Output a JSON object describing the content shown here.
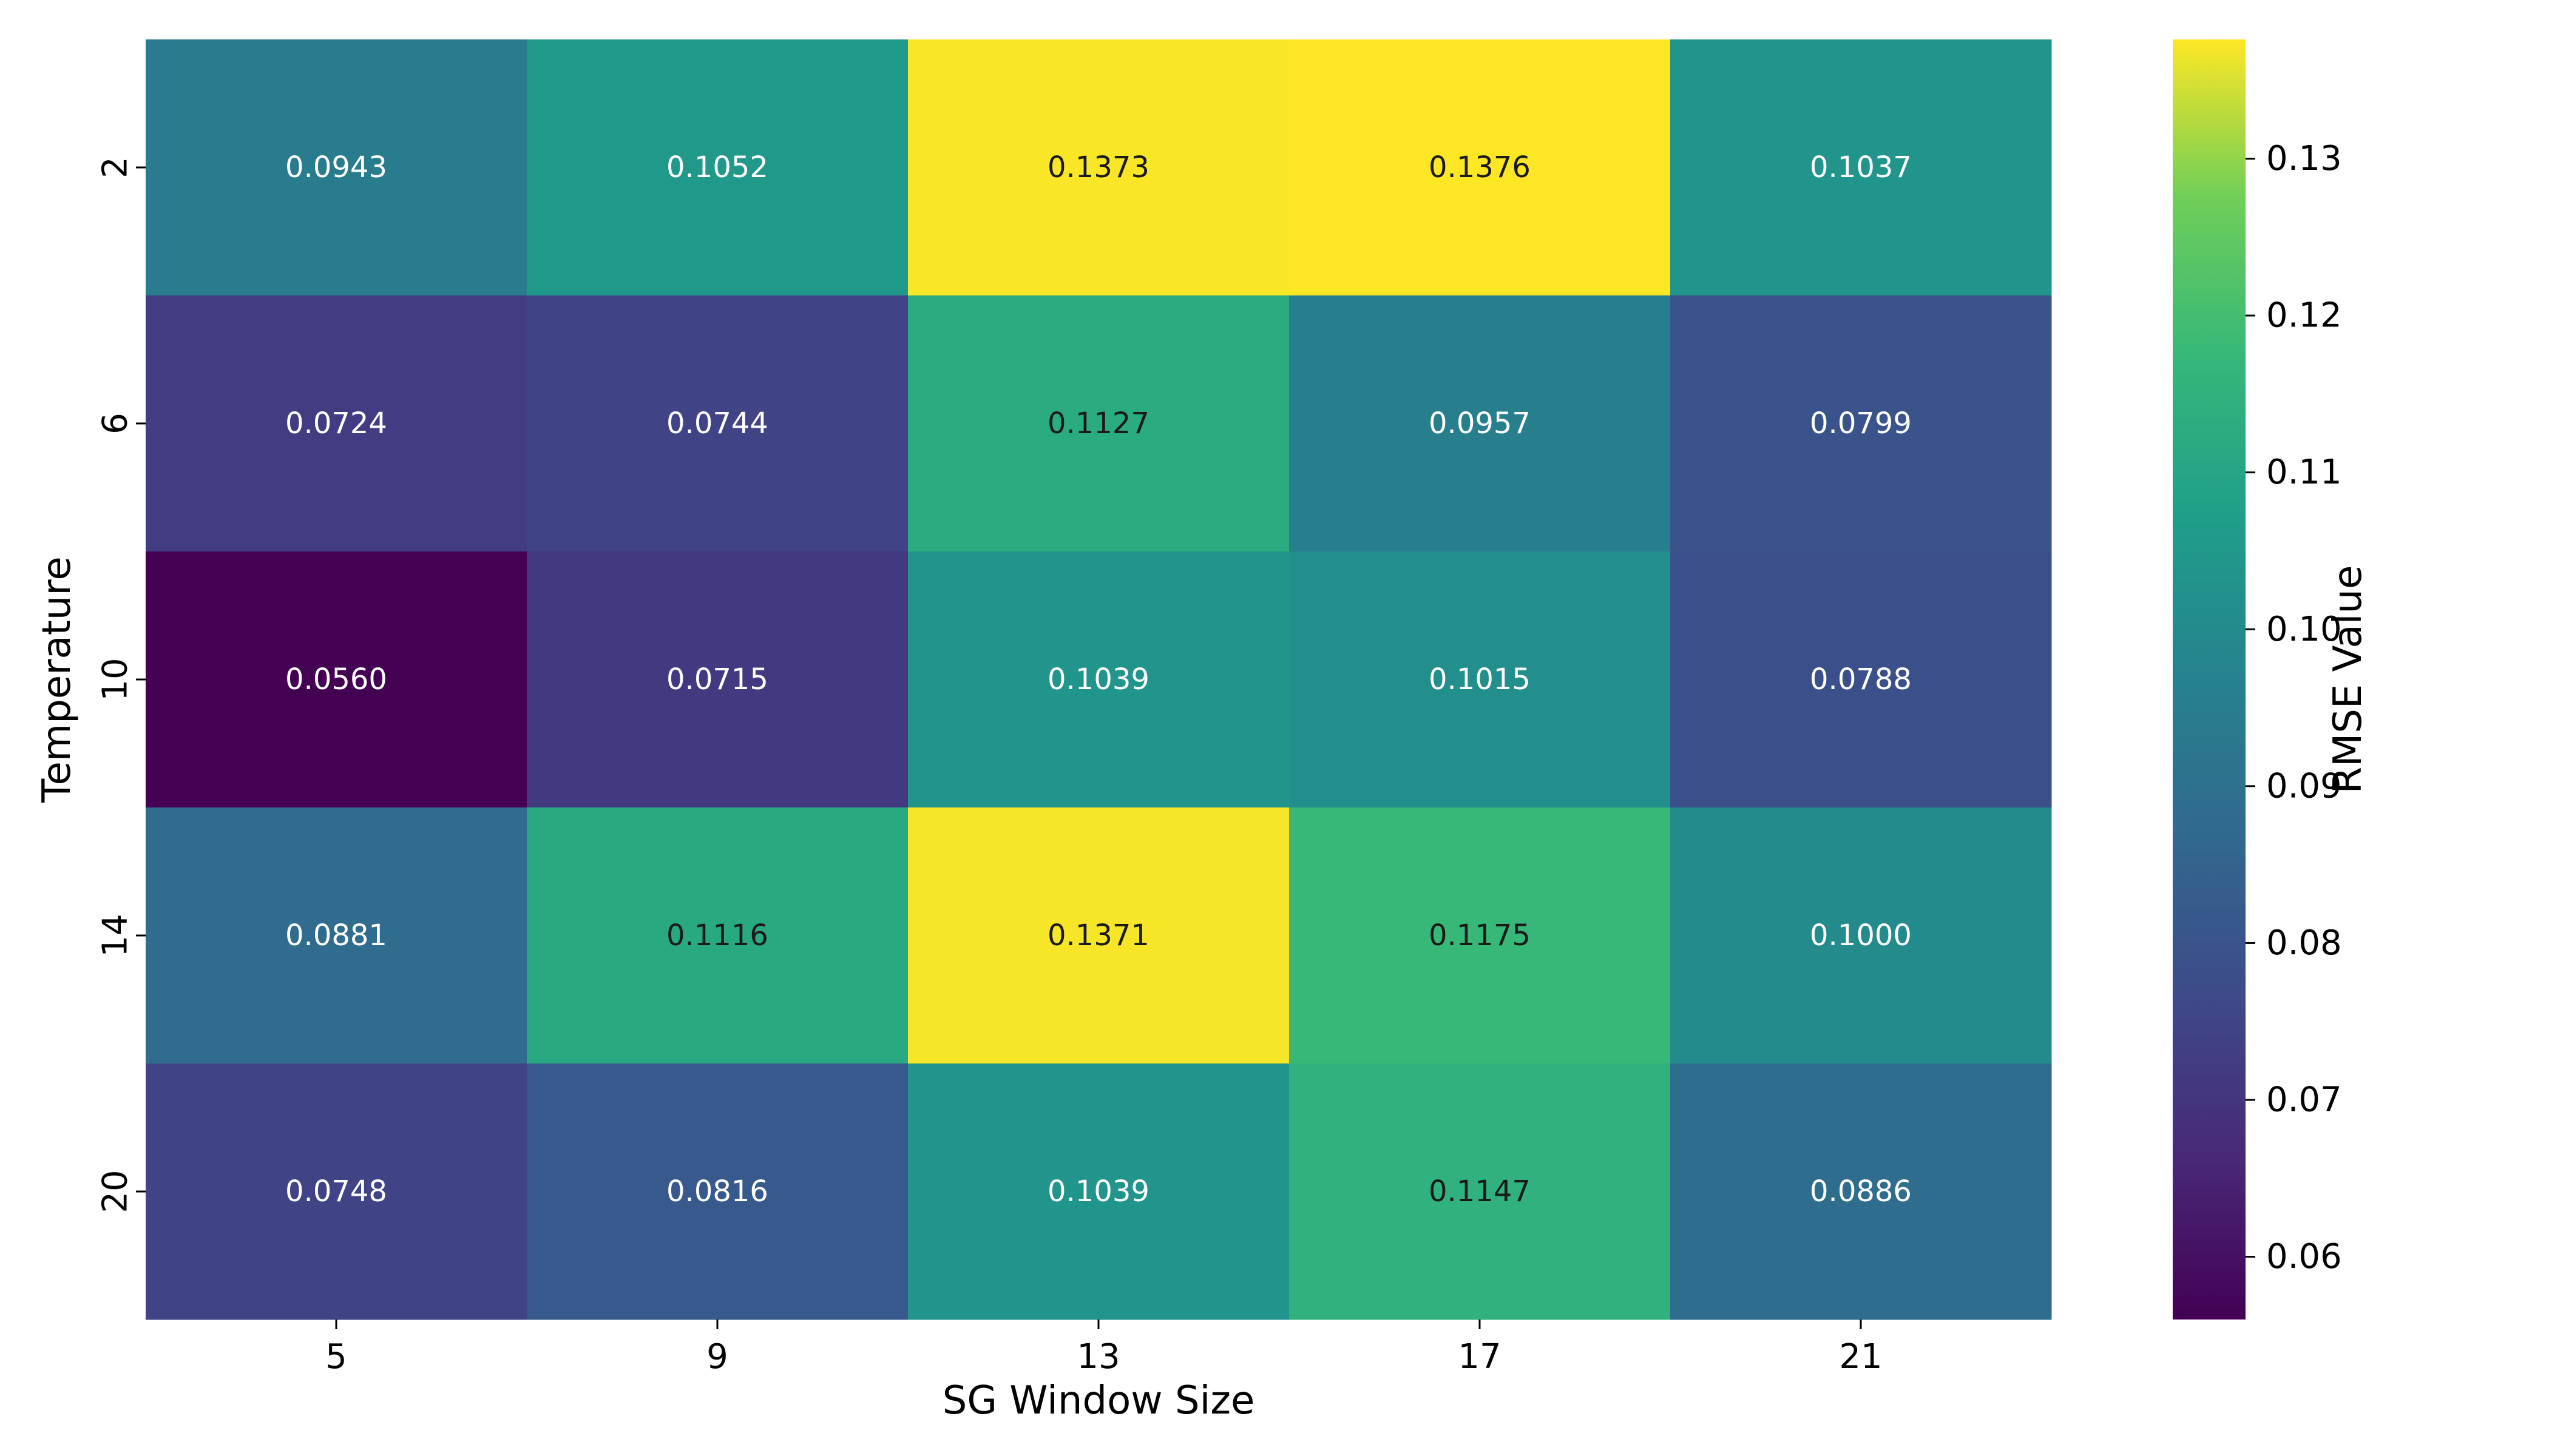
{
  "chart_data": {
    "type": "heatmap",
    "title": "",
    "xlabel": "SG Window Size",
    "ylabel": "Temperature",
    "x_categories": [
      "5",
      "9",
      "13",
      "17",
      "21"
    ],
    "y_categories": [
      "2",
      "6",
      "10",
      "14",
      "20"
    ],
    "values": [
      [
        0.0943,
        0.1052,
        0.1373,
        0.1376,
        0.1037
      ],
      [
        0.0724,
        0.0744,
        0.1127,
        0.0957,
        0.0799
      ],
      [
        0.056,
        0.0715,
        0.1039,
        0.1015,
        0.0788
      ],
      [
        0.0881,
        0.1116,
        0.1371,
        0.1175,
        0.1
      ],
      [
        0.0748,
        0.0816,
        0.1039,
        0.1147,
        0.0886
      ]
    ],
    "value_labels": [
      [
        "0.0943",
        "0.1052",
        "0.1373",
        "0.1376",
        "0.1037"
      ],
      [
        "0.0724",
        "0.0744",
        "0.1127",
        "0.0957",
        "0.0799"
      ],
      [
        "0.0560",
        "0.0715",
        "0.1039",
        "0.1015",
        "0.0788"
      ],
      [
        "0.0881",
        "0.1116",
        "0.1371",
        "0.1175",
        "0.1000"
      ],
      [
        "0.0748",
        "0.0816",
        "0.1039",
        "0.1147",
        "0.0886"
      ]
    ],
    "colormap": "viridis",
    "vmin": 0.056,
    "vmax": 0.1376,
    "colorbar": {
      "label": "RMSE Value",
      "ticks": [
        0.06,
        0.07,
        0.08,
        0.09,
        0.1,
        0.11,
        0.12,
        0.13
      ],
      "tick_labels": [
        "0.06",
        "0.07",
        "0.08",
        "0.09",
        "0.10",
        "0.11",
        "0.12",
        "0.13"
      ],
      "placement": "right"
    },
    "grid": false
  }
}
